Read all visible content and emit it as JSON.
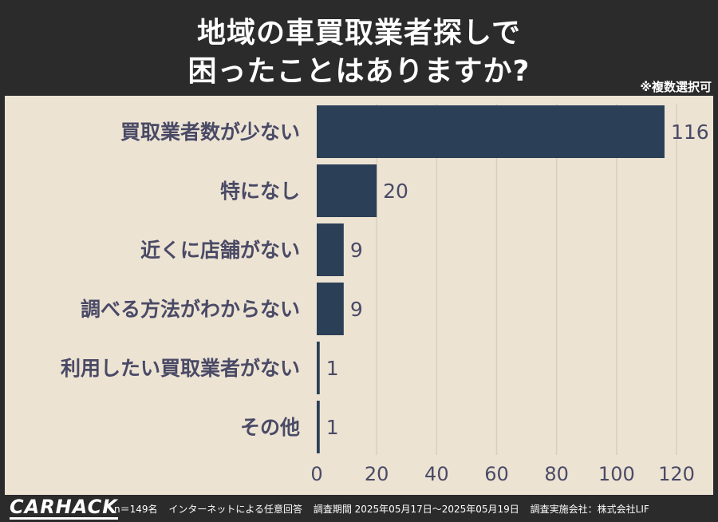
{
  "header": {
    "title_line1": "地域の車買取業者探しで",
    "title_line2": "困ったことはありますか?",
    "note": "※複数選択可"
  },
  "colors": {
    "bar": "#2b3f57",
    "label": "#4a4a66",
    "grid": "#d8cfbf",
    "panel_bg": "#ece3d3",
    "header_bg": "#2b2b2b"
  },
  "chart_data": {
    "type": "bar",
    "orientation": "horizontal",
    "categories": [
      "買取業者数が少ない",
      "特になし",
      "近くに店舗がない",
      "調べる方法がわからない",
      "利用したい買取業者がない",
      "その他"
    ],
    "values": [
      116,
      20,
      9,
      9,
      1,
      1
    ],
    "value_labels": [
      "116",
      "20",
      "9",
      "9",
      "1",
      "1"
    ],
    "xlim": [
      0,
      120
    ],
    "xticks": [
      0,
      20,
      40,
      60,
      80,
      100,
      120
    ],
    "xtick_labels": [
      "0",
      "20",
      "40",
      "60",
      "80",
      "100",
      "120"
    ],
    "grid": true
  },
  "footer": {
    "logo": "CARHACK",
    "sample": "n＝149名",
    "method": "インターネットによる任意回答",
    "period": "調査期間 2025年05月17日～2025年05月19日",
    "company": "調査実施会社：株式会社LIF"
  }
}
